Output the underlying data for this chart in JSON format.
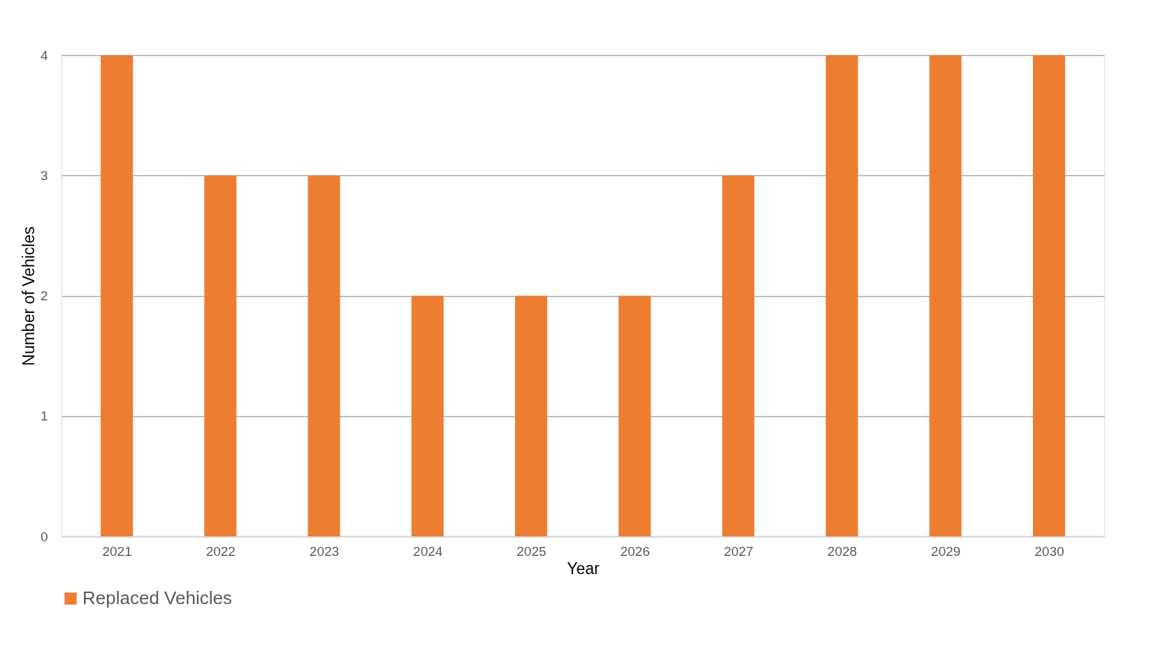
{
  "chart_data": {
    "type": "bar",
    "xlabel": "Year",
    "ylabel": "Number of Vehicles",
    "categories": [
      "2021",
      "2022",
      "2023",
      "2024",
      "2025",
      "2026",
      "2027",
      "2028",
      "2029",
      "2030"
    ],
    "series": [
      {
        "name": "Replaced Vehicles",
        "color": "#ed7d31",
        "values": [
          4,
          3,
          3,
          2,
          2,
          2,
          3,
          4,
          4,
          4
        ]
      }
    ],
    "ylim": [
      0,
      4
    ],
    "yticks": [
      0,
      1,
      2,
      3,
      4
    ],
    "grid": "y",
    "legend": "bottom"
  }
}
